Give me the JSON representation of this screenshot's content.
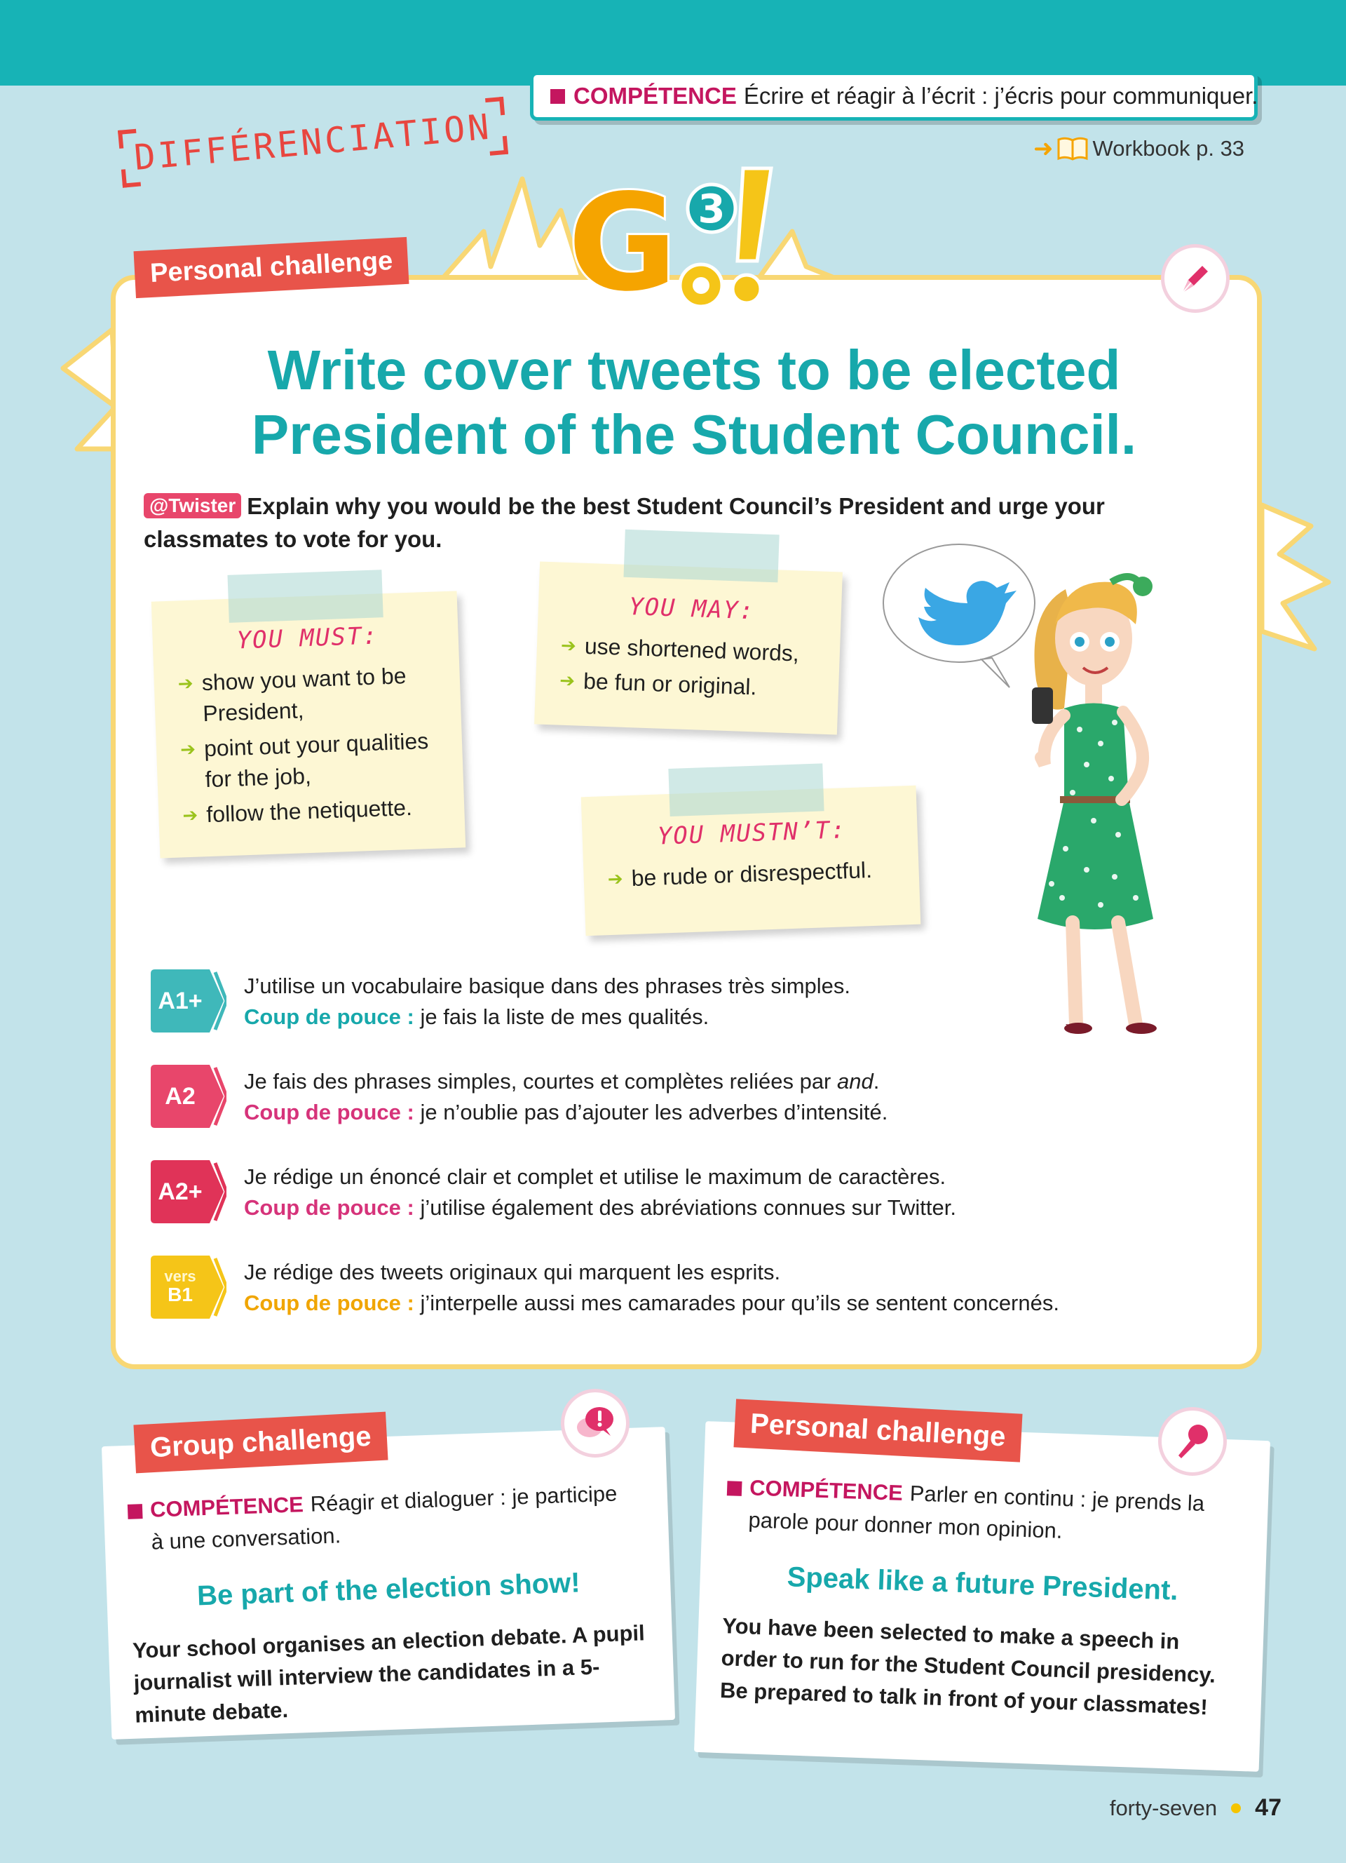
{
  "header": {
    "competence_label": "COMPÉTENCE",
    "competence_text": "Écrire et réagir à l’écrit : j’écris pour communiquer.",
    "workbook": "Workbook p. 33"
  },
  "differenciation": "DIFFÉRENCIATION",
  "logo": {
    "text": "Go",
    "sup": "3"
  },
  "main": {
    "tab": "Personal challenge",
    "title_line1": "Write cover tweets to be elected",
    "title_line2": "President of the Student Council.",
    "twister_tag": "@Twister",
    "intro": "Explain why you would be the best Student Council’s President and urge your classmates to vote for you.",
    "notes": {
      "must": {
        "title": "YOU MUST:",
        "items": [
          "show you want to be President,",
          "point out your qualities for the job,",
          "follow the netiquette."
        ]
      },
      "may": {
        "title": "YOU MAY:",
        "items": [
          "use shortened words,",
          "be fun or original."
        ]
      },
      "mustnt": {
        "title": "YOU MUSTN’T:",
        "items": [
          "be rude or disrespectful."
        ]
      }
    },
    "levels": [
      {
        "badge": "A1+",
        "color": "#3fb8ba",
        "line": "J’utilise un vocabulaire basique dans des phrases très simples.",
        "coup_label": "Coup de pouce :",
        "coup_color": "#17a8ab",
        "coup_text": "je fais la liste de mes qualités."
      },
      {
        "badge": "A2",
        "color": "#e8466b",
        "line_start": "Je fais des phrases simples, courtes et complètes reliées par ",
        "line_italic": "and",
        "line_end": ".",
        "coup_label": "Coup de pouce :",
        "coup_color": "#d6337a",
        "coup_text": "je n’oublie pas d’ajouter les adverbes d’intensité."
      },
      {
        "badge": "A2+",
        "color": "#e03358",
        "line": "Je rédige un énoncé clair et complet et utilise le maximum de caractères.",
        "coup_label": "Coup de pouce :",
        "coup_color": "#d6337a",
        "coup_text": "j’utilise également des abréviations connues sur Twitter."
      },
      {
        "badge_top": "vers",
        "badge": "B1",
        "color": "#f5c518",
        "line": "Je rédige des tweets originaux qui marquent les esprits.",
        "coup_label": "Coup de pouce :",
        "coup_color": "#f0a500",
        "coup_text": "j’interpelle aussi mes camarades pour qu’ils se sentent concernés."
      }
    ]
  },
  "group_card": {
    "tab": "Group challenge",
    "competence_label": "COMPÉTENCE",
    "competence_text": "Réagir et dialoguer : je participe à une conversation.",
    "subtitle": "Be part of the election show!",
    "body": "Your school organises an election debate. A pupil journalist will interview the candidates in a 5-minute debate."
  },
  "personal_card": {
    "tab": "Personal challenge",
    "competence_label": "COMPÉTENCE",
    "competence_text": "Parler en continu : je prends la parole pour donner mon opinion.",
    "subtitle": "Speak like a future President.",
    "body": "You have been selected to make a speech in order to run for the Student Council presidency. Be prepared to talk in front of your classmates!"
  },
  "footer": {
    "word": "forty-seven",
    "number": "47"
  },
  "colors": {
    "teal": "#17b3b6",
    "magenta": "#c4165f",
    "coral": "#e8544a",
    "yellow_border": "#f8d774",
    "background": "#c2e3ea"
  },
  "icons": [
    "book-icon",
    "pen-icon",
    "speech-bubble-icon",
    "microphone-icon",
    "twitter-bird-icon"
  ]
}
